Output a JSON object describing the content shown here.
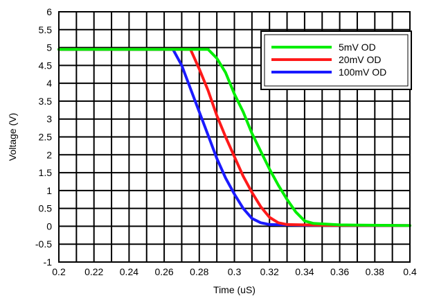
{
  "chart_data": {
    "type": "line",
    "title": "",
    "xlabel": "Time (uS)",
    "ylabel": "Voltage (V)",
    "xlim": [
      0.2,
      0.4
    ],
    "ylim": [
      -1,
      6
    ],
    "x_ticks": [
      "0.2",
      "0.22",
      "0.24",
      "0.26",
      "0.28",
      "0.3",
      "0.32",
      "0.34",
      "0.36",
      "0.38",
      "0.4"
    ],
    "y_ticks": [
      "-1",
      "-0.5",
      "0",
      "0.5",
      "1",
      "1.5",
      "2",
      "2.5",
      "3",
      "3.5",
      "4",
      "4.5",
      "5",
      "5.5",
      "6"
    ],
    "x_grid_step": 0.01,
    "y_grid_step": 0.5,
    "grid": true,
    "legend_position": "top-right",
    "series": [
      {
        "name": "5mV OD",
        "color": "#00ee00",
        "points": [
          [
            0.2,
            4.95
          ],
          [
            0.28,
            4.95
          ],
          [
            0.285,
            4.95
          ],
          [
            0.29,
            4.7
          ],
          [
            0.295,
            4.3
          ],
          [
            0.3,
            3.7
          ],
          [
            0.305,
            3.2
          ],
          [
            0.31,
            2.6
          ],
          [
            0.315,
            2.1
          ],
          [
            0.32,
            1.6
          ],
          [
            0.325,
            1.15
          ],
          [
            0.33,
            0.75
          ],
          [
            0.335,
            0.4
          ],
          [
            0.34,
            0.15
          ],
          [
            0.345,
            0.08
          ],
          [
            0.36,
            0.04
          ],
          [
            0.4,
            0.02
          ]
        ]
      },
      {
        "name": "20mV OD",
        "color": "#ff1a1a",
        "points": [
          [
            0.2,
            4.95
          ],
          [
            0.27,
            4.95
          ],
          [
            0.275,
            4.95
          ],
          [
            0.28,
            4.4
          ],
          [
            0.285,
            3.8
          ],
          [
            0.29,
            3.1
          ],
          [
            0.295,
            2.5
          ],
          [
            0.3,
            1.95
          ],
          [
            0.305,
            1.4
          ],
          [
            0.31,
            0.95
          ],
          [
            0.315,
            0.55
          ],
          [
            0.32,
            0.25
          ],
          [
            0.325,
            0.1
          ],
          [
            0.33,
            0.05
          ],
          [
            0.35,
            0.03
          ],
          [
            0.4,
            0.02
          ]
        ]
      },
      {
        "name": "100mV OD",
        "color": "#1a1aff",
        "points": [
          [
            0.2,
            4.95
          ],
          [
            0.265,
            4.95
          ],
          [
            0.27,
            4.5
          ],
          [
            0.275,
            3.85
          ],
          [
            0.28,
            3.2
          ],
          [
            0.285,
            2.55
          ],
          [
            0.29,
            1.9
          ],
          [
            0.295,
            1.35
          ],
          [
            0.3,
            0.9
          ],
          [
            0.305,
            0.5
          ],
          [
            0.31,
            0.22
          ],
          [
            0.315,
            0.1
          ],
          [
            0.32,
            0.05
          ],
          [
            0.34,
            0.03
          ],
          [
            0.4,
            0.02
          ]
        ]
      }
    ]
  }
}
